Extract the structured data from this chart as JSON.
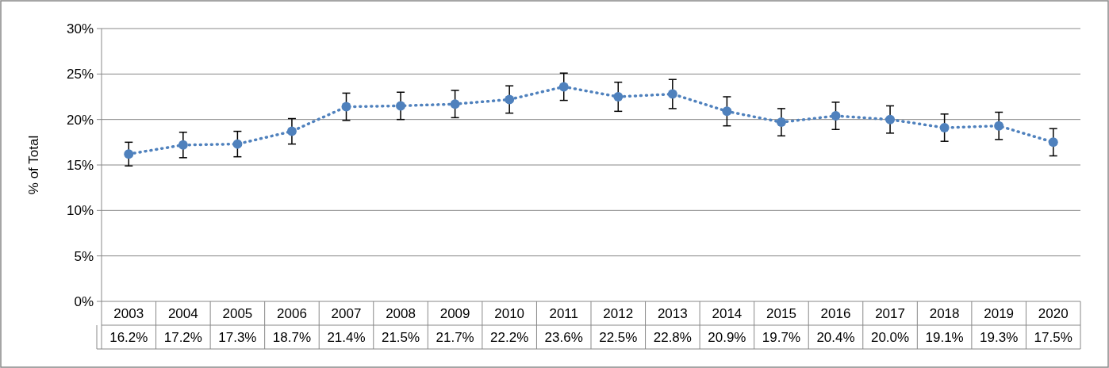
{
  "chart_data": {
    "type": "line",
    "ylabel": "% of Total",
    "categories": [
      "2003",
      "2004",
      "2005",
      "2006",
      "2007",
      "2008",
      "2009",
      "2010",
      "2011",
      "2012",
      "2013",
      "2014",
      "2015",
      "2016",
      "2017",
      "2018",
      "2019",
      "2020"
    ],
    "series": [
      {
        "color": "#4f81bd",
        "values": [
          16.2,
          17.2,
          17.3,
          18.7,
          21.4,
          21.5,
          21.7,
          22.2,
          23.6,
          22.5,
          22.8,
          20.9,
          19.7,
          20.4,
          20.0,
          19.1,
          19.3,
          17.5
        ],
        "errors": [
          1.3,
          1.4,
          1.4,
          1.4,
          1.5,
          1.5,
          1.5,
          1.5,
          1.5,
          1.6,
          1.6,
          1.6,
          1.5,
          1.5,
          1.5,
          1.5,
          1.5,
          1.5
        ],
        "value_labels": [
          "16.2%",
          "17.2%",
          "17.3%",
          "18.7%",
          "21.4%",
          "21.5%",
          "21.7%",
          "22.2%",
          "23.6%",
          "22.5%",
          "22.8%",
          "20.9%",
          "19.7%",
          "20.4%",
          "20.0%",
          "19.1%",
          "19.3%",
          "17.5%"
        ]
      }
    ],
    "ylim": [
      0,
      30
    ],
    "yticks": [
      {
        "value": 0,
        "label": "0%"
      },
      {
        "value": 5,
        "label": "5%"
      },
      {
        "value": 10,
        "label": "10%"
      },
      {
        "value": 15,
        "label": "15%"
      },
      {
        "value": 20,
        "label": "20%"
      },
      {
        "value": 25,
        "label": "25%"
      },
      {
        "value": 30,
        "label": "30%"
      }
    ],
    "grid": "y",
    "marker": "circle",
    "line_style": "dotted"
  }
}
